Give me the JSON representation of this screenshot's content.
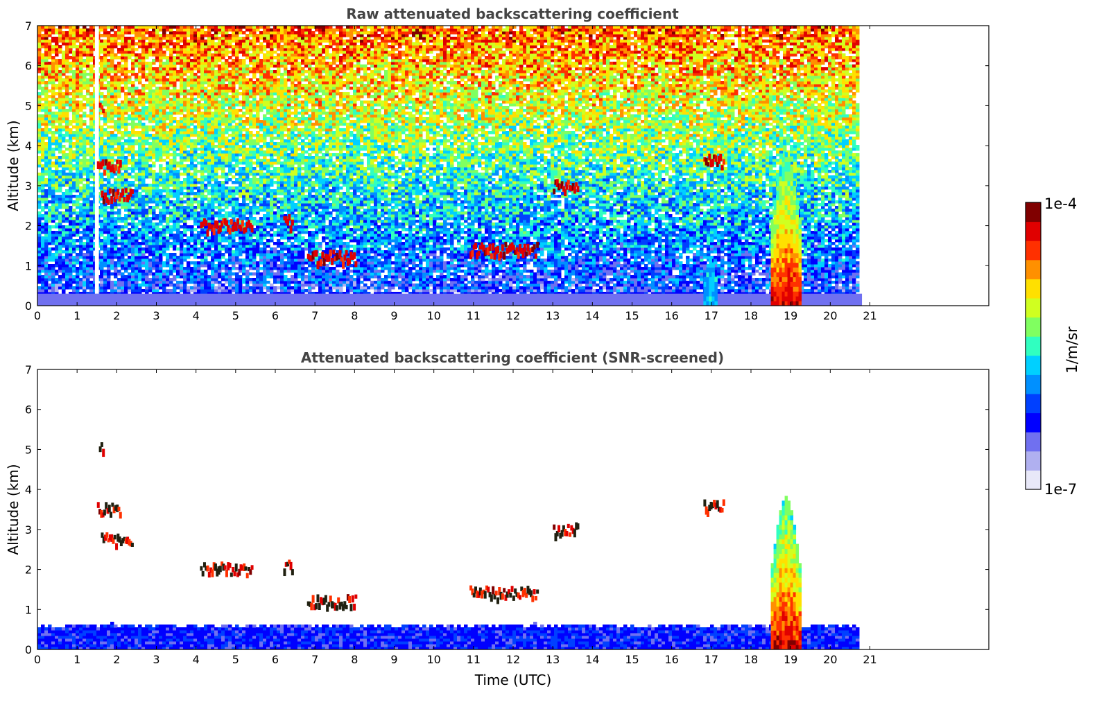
{
  "chart_data": [
    {
      "type": "heatmap",
      "title": "Raw attenuated backscattering coefficient",
      "xlabel": "",
      "ylabel": "Altitude (km)",
      "xlim": [
        0,
        24
      ],
      "ylim": [
        0,
        7
      ],
      "x_ticks": [
        "0",
        "1",
        "2",
        "3",
        "4",
        "5",
        "6",
        "7",
        "8",
        "9",
        "10",
        "11",
        "12",
        "13",
        "14",
        "15",
        "16",
        "17",
        "18",
        "19",
        "20",
        "21"
      ],
      "y_ticks": [
        "0",
        "1",
        "2",
        "3",
        "4",
        "5",
        "6",
        "7"
      ],
      "data_end_time": 20.8,
      "data_gap_time": [
        1.45,
        1.55
      ],
      "noise_background": "increasing with altitude: blue near 0-1 km, cyan-green 2-4 km, yellow-red 5-7 km",
      "features": [
        {
          "kind": "boundary layer",
          "t_start": 0,
          "t_end": 20.8,
          "alt_top": 0.3,
          "level": "blue-white"
        },
        {
          "kind": "cloud",
          "t": 1.6,
          "alt": 5.0
        },
        {
          "kind": "cloud",
          "t_start": 1.5,
          "t_end": 2.1,
          "alt": 3.5
        },
        {
          "kind": "cloud",
          "t_start": 1.6,
          "t_end": 2.4,
          "alt": 2.75
        },
        {
          "kind": "cloud",
          "t_start": 4.1,
          "t_end": 5.4,
          "alt": 2.0
        },
        {
          "kind": "cloud",
          "t_start": 6.2,
          "t_end": 6.4,
          "alt": 2.1
        },
        {
          "kind": "cloud",
          "t_start": 6.8,
          "t_end": 8.0,
          "alt": 1.2
        },
        {
          "kind": "cloud",
          "t_start": 10.9,
          "t_end": 12.6,
          "alt": 1.4
        },
        {
          "kind": "cloud",
          "t_start": 13.0,
          "t_end": 13.6,
          "alt": 3.0
        },
        {
          "kind": "cloud",
          "t_start": 16.8,
          "t_end": 17.3,
          "alt": 3.6
        },
        {
          "kind": "precipitation",
          "t_start": 18.5,
          "t_end": 19.2,
          "alt_top": 3.8,
          "level": "green-red"
        },
        {
          "kind": "aerosol",
          "t_start": 16.8,
          "t_end": 17.1,
          "alt_top": 1.1,
          "level": "cyan"
        }
      ]
    },
    {
      "type": "heatmap",
      "title": "Attenuated backscattering coefficient (SNR-screened)",
      "xlabel": "Time (UTC)",
      "ylabel": "Altitude (km)",
      "xlim": [
        0,
        24
      ],
      "ylim": [
        0,
        7
      ],
      "x_ticks": [
        "0",
        "1",
        "2",
        "3",
        "4",
        "5",
        "6",
        "7",
        "8",
        "9",
        "10",
        "11",
        "12",
        "13",
        "14",
        "15",
        "16",
        "17",
        "18",
        "19",
        "20",
        "21"
      ],
      "y_ticks": [
        "0",
        "1",
        "2",
        "3",
        "4",
        "5",
        "6",
        "7"
      ],
      "data_end_time": 20.8,
      "screened_layer_top": 0.6,
      "features": [
        {
          "kind": "cloud",
          "t": 1.6,
          "alt": 5.0
        },
        {
          "kind": "cloud",
          "t_start": 1.5,
          "t_end": 2.1,
          "alt": 3.5
        },
        {
          "kind": "cloud",
          "t_start": 1.6,
          "t_end": 2.4,
          "alt": 2.75
        },
        {
          "kind": "cloud",
          "t_start": 4.1,
          "t_end": 5.4,
          "alt": 2.0
        },
        {
          "kind": "cloud",
          "t_start": 6.2,
          "t_end": 6.4,
          "alt": 2.1
        },
        {
          "kind": "cloud",
          "t_start": 6.8,
          "t_end": 8.0,
          "alt": 1.2
        },
        {
          "kind": "cloud",
          "t_start": 10.9,
          "t_end": 12.6,
          "alt": 1.4
        },
        {
          "kind": "cloud",
          "t_start": 13.0,
          "t_end": 13.6,
          "alt": 3.0
        },
        {
          "kind": "cloud",
          "t_start": 16.8,
          "t_end": 17.3,
          "alt": 3.6
        },
        {
          "kind": "precipitation",
          "t_start": 18.5,
          "t_end": 19.2,
          "alt_top": 3.8,
          "level": "green-red"
        }
      ]
    }
  ],
  "colorbar": {
    "max_label": "1e-4",
    "min_label": "1e-7",
    "unit_label": "1/m/sr",
    "colors": [
      "#e8e8f8",
      "#b0b0f0",
      "#7070f0",
      "#0000ff",
      "#0040ff",
      "#0090ff",
      "#00d0ff",
      "#30ffc0",
      "#80ff60",
      "#d0ff20",
      "#ffe000",
      "#ff9000",
      "#ff3000",
      "#e00000",
      "#800000"
    ]
  }
}
